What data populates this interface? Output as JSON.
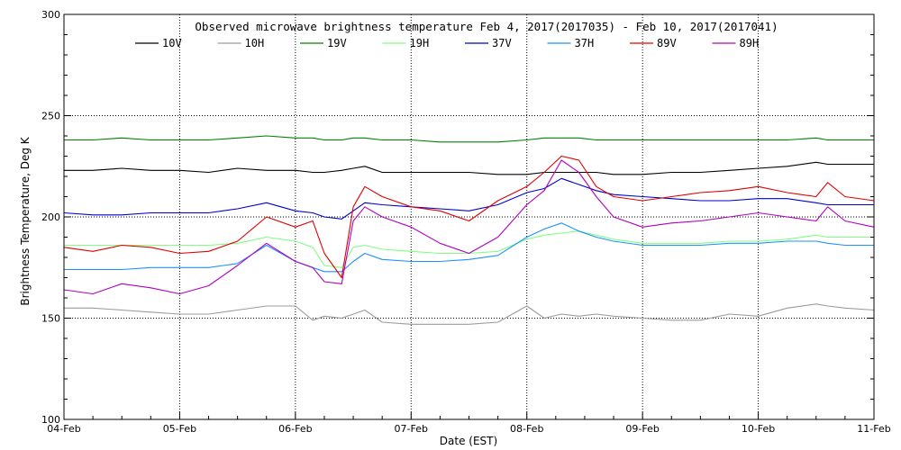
{
  "chart_data": {
    "type": "line",
    "title": "Observed microwave brightness temperature Feb  4, 2017(2017035) - Feb 10, 2017(2017041)",
    "xlabel": "Date (EST)",
    "ylabel": "Brightness Temperature, Deg K",
    "xlim": [
      0,
      7
    ],
    "ylim": [
      100,
      300
    ],
    "x_ticks": [
      {
        "value": 0,
        "label": "04-Feb"
      },
      {
        "value": 1,
        "label": "05-Feb"
      },
      {
        "value": 2,
        "label": "06-Feb"
      },
      {
        "value": 3,
        "label": "07-Feb"
      },
      {
        "value": 4,
        "label": "08-Feb"
      },
      {
        "value": 5,
        "label": "09-Feb"
      },
      {
        "value": 6,
        "label": "10-Feb"
      },
      {
        "value": 7,
        "label": "11-Feb"
      }
    ],
    "y_ticks": [
      100,
      150,
      200,
      250,
      300
    ],
    "grid": "dotted",
    "legend_position": "top",
    "x": [
      0,
      0.25,
      0.5,
      0.75,
      1.0,
      1.25,
      1.5,
      1.75,
      2.0,
      2.15,
      2.25,
      2.4,
      2.5,
      2.6,
      2.75,
      3.0,
      3.25,
      3.5,
      3.75,
      4.0,
      4.15,
      4.3,
      4.45,
      4.6,
      4.75,
      5.0,
      5.25,
      5.5,
      5.75,
      6.0,
      6.25,
      6.5,
      6.6,
      6.75,
      7.0
    ],
    "series": [
      {
        "name": "10V",
        "color": "#000000",
        "values": [
          223,
          223,
          224,
          223,
          223,
          222,
          224,
          223,
          223,
          222,
          222,
          223,
          224,
          225,
          222,
          222,
          222,
          222,
          221,
          221,
          222,
          222,
          222,
          222,
          221,
          221,
          222,
          222,
          223,
          224,
          225,
          227,
          226,
          226,
          226
        ]
      },
      {
        "name": "10H",
        "color": "#9b9b9b",
        "values": [
          155,
          155,
          154,
          153,
          152,
          152,
          154,
          156,
          156,
          149,
          151,
          150,
          152,
          154,
          148,
          147,
          147,
          147,
          148,
          156,
          150,
          152,
          151,
          152,
          151,
          150,
          149,
          149,
          152,
          151,
          155,
          157,
          156,
          155,
          154
        ]
      },
      {
        "name": "19V",
        "color": "#008000",
        "values": [
          238,
          238,
          239,
          238,
          238,
          238,
          239,
          240,
          239,
          239,
          238,
          238,
          239,
          239,
          238,
          238,
          237,
          237,
          237,
          238,
          239,
          239,
          239,
          238,
          238,
          238,
          238,
          238,
          238,
          238,
          238,
          239,
          238,
          238,
          238
        ]
      },
      {
        "name": "19H",
        "color": "#80ff80",
        "values": [
          186,
          186,
          186,
          186,
          186,
          186,
          187,
          190,
          188,
          185,
          176,
          175,
          185,
          186,
          184,
          183,
          182,
          182,
          183,
          189,
          191,
          192,
          193,
          191,
          189,
          187,
          187,
          187,
          188,
          188,
          189,
          191,
          190,
          190,
          190
        ]
      },
      {
        "name": "37V",
        "color": "#0000cd",
        "values": [
          202,
          201,
          201,
          202,
          202,
          202,
          204,
          207,
          203,
          202,
          200,
          199,
          203,
          207,
          206,
          205,
          204,
          203,
          206,
          212,
          214,
          219,
          216,
          213,
          211,
          210,
          209,
          208,
          208,
          209,
          209,
          207,
          206,
          206,
          206
        ]
      },
      {
        "name": "37H",
        "color": "#1e90ff",
        "values": [
          174,
          174,
          174,
          175,
          175,
          175,
          177,
          186,
          178,
          175,
          173,
          173,
          178,
          182,
          179,
          178,
          178,
          179,
          181,
          190,
          194,
          197,
          193,
          190,
          188,
          186,
          186,
          186,
          187,
          187,
          188,
          188,
          187,
          186,
          186
        ]
      },
      {
        "name": "89V",
        "color": "#e00000",
        "values": [
          185,
          183,
          186,
          185,
          182,
          183,
          188,
          200,
          195,
          198,
          182,
          170,
          205,
          215,
          210,
          205,
          203,
          198,
          208,
          215,
          222,
          230,
          228,
          215,
          210,
          208,
          210,
          212,
          213,
          215,
          212,
          210,
          217,
          210,
          208
        ]
      },
      {
        "name": "89H",
        "color": "#b000c0",
        "values": [
          164,
          162,
          167,
          165,
          162,
          166,
          176,
          187,
          178,
          175,
          168,
          167,
          198,
          205,
          200,
          195,
          187,
          182,
          190,
          206,
          213,
          228,
          222,
          210,
          200,
          195,
          197,
          198,
          200,
          202,
          200,
          198,
          205,
          198,
          195
        ]
      }
    ]
  }
}
